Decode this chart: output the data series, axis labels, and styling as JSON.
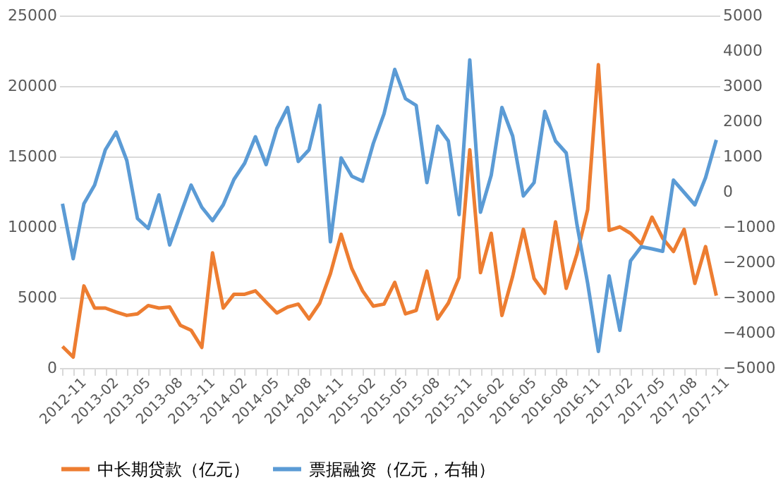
{
  "chart_data": {
    "type": "line",
    "categories": [
      "2012-11",
      null,
      null,
      "2013-02",
      null,
      null,
      "2013-05",
      null,
      null,
      "2013-08",
      null,
      null,
      "2013-11",
      null,
      null,
      "2014-02",
      null,
      null,
      "2014-05",
      null,
      null,
      "2014-08",
      null,
      null,
      "2014-11",
      null,
      null,
      "2015-02",
      null,
      null,
      "2015-05",
      null,
      null,
      "2015-08",
      null,
      null,
      "2015-11",
      null,
      null,
      "2016-02",
      null,
      null,
      "2016-05",
      null,
      null,
      "2016-08",
      null,
      null,
      "2016-11",
      null,
      null,
      "2017-02",
      null,
      null,
      "2017-05",
      null,
      null,
      "2017-08",
      null,
      null,
      "2017-11",
      null
    ],
    "series": [
      {
        "name": "中长期贷款（亿元）",
        "color": "#ed7d31",
        "values": [
          1530,
          770,
          5820,
          4250,
          4250,
          3970,
          3730,
          3840,
          4430,
          4250,
          4320,
          3030,
          2680,
          1460,
          8160,
          4250,
          5230,
          5230,
          5470,
          4670,
          3900,
          4320,
          4530,
          3480,
          4600,
          6690,
          9480,
          7040,
          5470,
          4390,
          4530,
          6070,
          3840,
          4080,
          6870,
          3480,
          4600,
          6420,
          15480,
          6760,
          9550,
          3730,
          6500,
          9830,
          6350,
          5300,
          10360,
          5650,
          8090,
          11230,
          21510,
          9760,
          10010,
          9550,
          8790,
          10700,
          9200,
          8260,
          9830,
          6000,
          8610,
          5130
        ]
      },
      {
        "name": "票据融资（亿元，右轴）",
        "color": "#5b9bd5",
        "axis": "y2",
        "values": [
          -340,
          -1900,
          -340,
          190,
          1190,
          1690,
          890,
          -760,
          -1040,
          -90,
          -1510,
          -650,
          190,
          -440,
          -820,
          -370,
          350,
          810,
          1560,
          770,
          1790,
          2390,
          860,
          1190,
          2450,
          -1420,
          960,
          440,
          300,
          1370,
          2210,
          3470,
          2640,
          2450,
          260,
          1860,
          1440,
          -650,
          3740,
          -580,
          470,
          2390,
          1580,
          -120,
          260,
          2280,
          1440,
          1100,
          -930,
          -2600,
          -4530,
          -2390,
          -3930,
          -1960,
          -1560,
          -1620,
          -1690,
          330,
          -20,
          -370,
          400,
          1470
        ]
      }
    ],
    "ylim": [
      0,
      25000
    ],
    "yticks": [
      0,
      5000,
      10000,
      15000,
      20000,
      25000
    ],
    "y2lim": [
      -5000,
      5000
    ],
    "y2ticks": [
      -5000,
      -4000,
      -3000,
      -2000,
      -1000,
      0,
      1000,
      2000,
      3000,
      4000,
      5000
    ],
    "grid": "y",
    "legend": "bottom",
    "line_style": "solid"
  }
}
